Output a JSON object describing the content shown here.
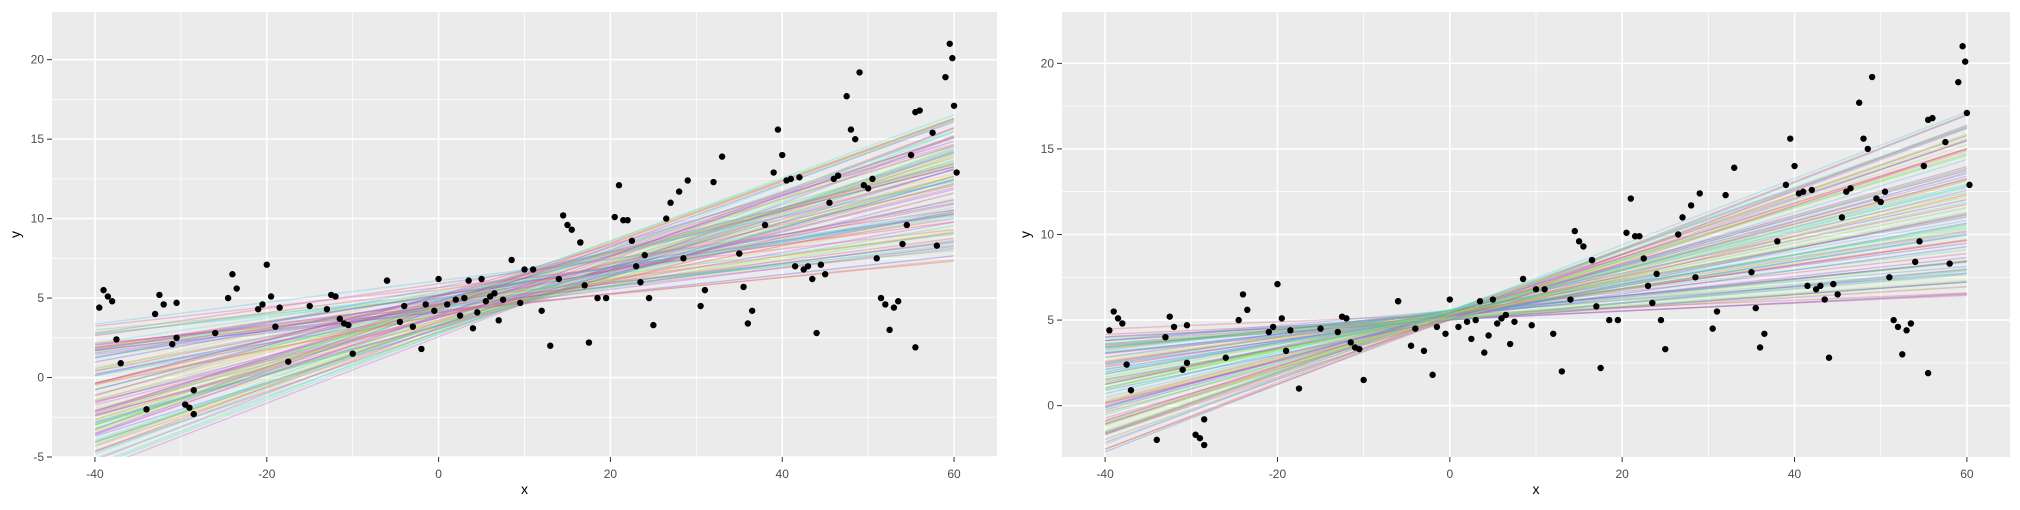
{
  "colors": {
    "panel_bg": "#EBEBEB",
    "grid": "#FFFFFF",
    "point": "#000000",
    "text": "#4D4D4D",
    "title": "#000000"
  },
  "chart_data": [
    {
      "type": "scatter",
      "xlabel": "x",
      "ylabel": "y",
      "xlim": [
        -45,
        65
      ],
      "ylim": [
        -5,
        23
      ],
      "x_ticks": [
        -40,
        -20,
        0,
        20,
        40,
        60
      ],
      "y_ticks": [
        -5,
        0,
        5,
        10,
        15,
        20
      ],
      "grid": true,
      "overlay": {
        "n_lines": 100,
        "line_opacity": 0.35,
        "pivot_x": 10,
        "pivot_y": [
          4.6,
          6.8
        ],
        "slope": [
          0.05,
          0.21
        ]
      },
      "points": [
        [
          -39.5,
          4.4
        ],
        [
          -39,
          5.5
        ],
        [
          -38.5,
          5.1
        ],
        [
          -38,
          4.8
        ],
        [
          -37.5,
          2.4
        ],
        [
          -37,
          0.9
        ],
        [
          -34,
          -2.0
        ],
        [
          -33,
          4.0
        ],
        [
          -32.5,
          5.2
        ],
        [
          -32,
          4.6
        ],
        [
          -31,
          2.1
        ],
        [
          -30.5,
          2.5
        ],
        [
          -30.5,
          4.7
        ],
        [
          -29.5,
          -1.7
        ],
        [
          -29,
          -1.9
        ],
        [
          -28.5,
          -2.3
        ],
        [
          -28.5,
          -0.8
        ],
        [
          -26,
          2.8
        ],
        [
          -24.5,
          5.0
        ],
        [
          -24,
          6.5
        ],
        [
          -23.5,
          5.6
        ],
        [
          -21,
          4.3
        ],
        [
          -20.5,
          4.6
        ],
        [
          -20,
          7.1
        ],
        [
          -19.5,
          5.1
        ],
        [
          -19,
          3.2
        ],
        [
          -18.5,
          4.4
        ],
        [
          -17.5,
          1.0
        ],
        [
          -15,
          4.5
        ],
        [
          -13,
          4.3
        ],
        [
          -12.5,
          5.2
        ],
        [
          -12,
          5.1
        ],
        [
          -11.5,
          3.7
        ],
        [
          -11,
          3.4
        ],
        [
          -10.5,
          3.3
        ],
        [
          -10,
          1.5
        ],
        [
          -6,
          6.1
        ],
        [
          -4.5,
          3.5
        ],
        [
          -4,
          4.5
        ],
        [
          -3,
          3.2
        ],
        [
          -2,
          1.8
        ],
        [
          -1.5,
          4.6
        ],
        [
          -0.5,
          4.2
        ],
        [
          0,
          6.2
        ],
        [
          1,
          4.6
        ],
        [
          2,
          4.9
        ],
        [
          2.5,
          3.9
        ],
        [
          3,
          5.0
        ],
        [
          3.5,
          6.1
        ],
        [
          4,
          3.1
        ],
        [
          4.5,
          4.1
        ],
        [
          5,
          6.2
        ],
        [
          5.5,
          4.8
        ],
        [
          6,
          5.1
        ],
        [
          6.5,
          5.3
        ],
        [
          7,
          3.6
        ],
        [
          7.5,
          4.9
        ],
        [
          8.5,
          7.4
        ],
        [
          9.5,
          4.7
        ],
        [
          10,
          6.8
        ],
        [
          11,
          6.8
        ],
        [
          12,
          4.2
        ],
        [
          13,
          2.0
        ],
        [
          14,
          6.2
        ],
        [
          14.5,
          10.2
        ],
        [
          15,
          9.6
        ],
        [
          15.5,
          9.3
        ],
        [
          16.5,
          8.5
        ],
        [
          17,
          5.8
        ],
        [
          17.5,
          2.2
        ],
        [
          18.5,
          5.0
        ],
        [
          19.5,
          5.0
        ],
        [
          20.5,
          10.1
        ],
        [
          21,
          12.1
        ],
        [
          21.5,
          9.9
        ],
        [
          22,
          9.9
        ],
        [
          22.5,
          8.6
        ],
        [
          23,
          7.0
        ],
        [
          23.5,
          6.0
        ],
        [
          24,
          7.7
        ],
        [
          24.5,
          5.0
        ],
        [
          25,
          3.3
        ],
        [
          26.5,
          10.0
        ],
        [
          27,
          11.0
        ],
        [
          28,
          11.7
        ],
        [
          28.5,
          7.5
        ],
        [
          29,
          12.4
        ],
        [
          30.5,
          4.5
        ],
        [
          31,
          5.5
        ],
        [
          32,
          12.3
        ],
        [
          33,
          13.9
        ],
        [
          35,
          7.8
        ],
        [
          35.5,
          5.7
        ],
        [
          36,
          3.4
        ],
        [
          36.5,
          4.2
        ],
        [
          38,
          9.6
        ],
        [
          39,
          12.9
        ],
        [
          39.5,
          15.6
        ],
        [
          40,
          14.0
        ],
        [
          40.5,
          12.4
        ],
        [
          41,
          12.5
        ],
        [
          41.5,
          7.0
        ],
        [
          42,
          12.6
        ],
        [
          42.5,
          6.8
        ],
        [
          43,
          7.0
        ],
        [
          43.5,
          6.2
        ],
        [
          44,
          2.8
        ],
        [
          44.5,
          7.1
        ],
        [
          45,
          6.5
        ],
        [
          45.5,
          11.0
        ],
        [
          46,
          12.5
        ],
        [
          46.5,
          12.7
        ],
        [
          47.5,
          17.7
        ],
        [
          48,
          15.6
        ],
        [
          48.5,
          15.0
        ],
        [
          49,
          19.2
        ],
        [
          49.5,
          12.1
        ],
        [
          50,
          11.9
        ],
        [
          50.5,
          12.5
        ],
        [
          51,
          7.5
        ],
        [
          51.5,
          5.0
        ],
        [
          52,
          4.6
        ],
        [
          52.5,
          3.0
        ],
        [
          53,
          4.4
        ],
        [
          53.5,
          4.8
        ],
        [
          54,
          8.4
        ],
        [
          54.5,
          9.6
        ],
        [
          55,
          14.0
        ],
        [
          55.5,
          16.7
        ],
        [
          56,
          16.8
        ],
        [
          57.5,
          15.4
        ],
        [
          58,
          8.3
        ],
        [
          59,
          18.9
        ],
        [
          59.5,
          21.0
        ],
        [
          59.8,
          20.1
        ],
        [
          60,
          17.1
        ],
        [
          60.3,
          12.9
        ],
        [
          55.5,
          1.9
        ],
        [
          16.5,
          8.5
        ],
        [
          -6,
          6.1
        ]
      ]
    },
    {
      "type": "scatter",
      "xlabel": "x",
      "ylabel": "y",
      "xlim": [
        -45,
        65
      ],
      "ylim": [
        -3,
        23
      ],
      "x_ticks": [
        -40,
        -20,
        0,
        20,
        40,
        60
      ],
      "y_ticks": [
        0,
        5,
        10,
        15,
        20
      ],
      "grid": true,
      "overlay": {
        "n_lines": 100,
        "line_opacity": 0.35,
        "pivot_x": 0,
        "pivot_y": [
          5.0,
          5.6
        ],
        "slope": [
          0.02,
          0.2
        ]
      },
      "points": [
        [
          -39.5,
          4.4
        ],
        [
          -39,
          5.5
        ],
        [
          -38.5,
          5.1
        ],
        [
          -38,
          4.8
        ],
        [
          -37.5,
          2.4
        ],
        [
          -37,
          0.9
        ],
        [
          -34,
          -2.0
        ],
        [
          -33,
          4.0
        ],
        [
          -32.5,
          5.2
        ],
        [
          -32,
          4.6
        ],
        [
          -31,
          2.1
        ],
        [
          -30.5,
          2.5
        ],
        [
          -30.5,
          4.7
        ],
        [
          -29.5,
          -1.7
        ],
        [
          -29,
          -1.9
        ],
        [
          -28.5,
          -2.3
        ],
        [
          -28.5,
          -0.8
        ],
        [
          -26,
          2.8
        ],
        [
          -24.5,
          5.0
        ],
        [
          -24,
          6.5
        ],
        [
          -23.5,
          5.6
        ],
        [
          -21,
          4.3
        ],
        [
          -20.5,
          4.6
        ],
        [
          -20,
          7.1
        ],
        [
          -19.5,
          5.1
        ],
        [
          -19,
          3.2
        ],
        [
          -18.5,
          4.4
        ],
        [
          -17.5,
          1.0
        ],
        [
          -15,
          4.5
        ],
        [
          -13,
          4.3
        ],
        [
          -12.5,
          5.2
        ],
        [
          -12,
          5.1
        ],
        [
          -11.5,
          3.7
        ],
        [
          -11,
          3.4
        ],
        [
          -10.5,
          3.3
        ],
        [
          -10,
          1.5
        ],
        [
          -6,
          6.1
        ],
        [
          -4.5,
          3.5
        ],
        [
          -4,
          4.5
        ],
        [
          -3,
          3.2
        ],
        [
          -2,
          1.8
        ],
        [
          -1.5,
          4.6
        ],
        [
          -0.5,
          4.2
        ],
        [
          0,
          6.2
        ],
        [
          1,
          4.6
        ],
        [
          2,
          4.9
        ],
        [
          2.5,
          3.9
        ],
        [
          3,
          5.0
        ],
        [
          3.5,
          6.1
        ],
        [
          4,
          3.1
        ],
        [
          4.5,
          4.1
        ],
        [
          5,
          6.2
        ],
        [
          5.5,
          4.8
        ],
        [
          6,
          5.1
        ],
        [
          6.5,
          5.3
        ],
        [
          7,
          3.6
        ],
        [
          7.5,
          4.9
        ],
        [
          8.5,
          7.4
        ],
        [
          9.5,
          4.7
        ],
        [
          10,
          6.8
        ],
        [
          11,
          6.8
        ],
        [
          12,
          4.2
        ],
        [
          13,
          2.0
        ],
        [
          14,
          6.2
        ],
        [
          14.5,
          10.2
        ],
        [
          15,
          9.6
        ],
        [
          15.5,
          9.3
        ],
        [
          16.5,
          8.5
        ],
        [
          17,
          5.8
        ],
        [
          17.5,
          2.2
        ],
        [
          18.5,
          5.0
        ],
        [
          19.5,
          5.0
        ],
        [
          20.5,
          10.1
        ],
        [
          21,
          12.1
        ],
        [
          21.5,
          9.9
        ],
        [
          22,
          9.9
        ],
        [
          22.5,
          8.6
        ],
        [
          23,
          7.0
        ],
        [
          23.5,
          6.0
        ],
        [
          24,
          7.7
        ],
        [
          24.5,
          5.0
        ],
        [
          25,
          3.3
        ],
        [
          26.5,
          10.0
        ],
        [
          27,
          11.0
        ],
        [
          28,
          11.7
        ],
        [
          28.5,
          7.5
        ],
        [
          29,
          12.4
        ],
        [
          30.5,
          4.5
        ],
        [
          31,
          5.5
        ],
        [
          32,
          12.3
        ],
        [
          33,
          13.9
        ],
        [
          35,
          7.8
        ],
        [
          35.5,
          5.7
        ],
        [
          36,
          3.4
        ],
        [
          36.5,
          4.2
        ],
        [
          38,
          9.6
        ],
        [
          39,
          12.9
        ],
        [
          39.5,
          15.6
        ],
        [
          40,
          14.0
        ],
        [
          40.5,
          12.4
        ],
        [
          41,
          12.5
        ],
        [
          41.5,
          7.0
        ],
        [
          42,
          12.6
        ],
        [
          42.5,
          6.8
        ],
        [
          43,
          7.0
        ],
        [
          43.5,
          6.2
        ],
        [
          44,
          2.8
        ],
        [
          44.5,
          7.1
        ],
        [
          45,
          6.5
        ],
        [
          45.5,
          11.0
        ],
        [
          46,
          12.5
        ],
        [
          46.5,
          12.7
        ],
        [
          47.5,
          17.7
        ],
        [
          48,
          15.6
        ],
        [
          48.5,
          15.0
        ],
        [
          49,
          19.2
        ],
        [
          49.5,
          12.1
        ],
        [
          50,
          11.9
        ],
        [
          50.5,
          12.5
        ],
        [
          51,
          7.5
        ],
        [
          51.5,
          5.0
        ],
        [
          52,
          4.6
        ],
        [
          52.5,
          3.0
        ],
        [
          53,
          4.4
        ],
        [
          53.5,
          4.8
        ],
        [
          54,
          8.4
        ],
        [
          54.5,
          9.6
        ],
        [
          55,
          14.0
        ],
        [
          55.5,
          16.7
        ],
        [
          56,
          16.8
        ],
        [
          57.5,
          15.4
        ],
        [
          58,
          8.3
        ],
        [
          59,
          18.9
        ],
        [
          59.5,
          21.0
        ],
        [
          59.8,
          20.1
        ],
        [
          60,
          17.1
        ],
        [
          60.3,
          12.9
        ],
        [
          55.5,
          1.9
        ],
        [
          16.5,
          8.5
        ],
        [
          -6,
          6.1
        ]
      ]
    }
  ]
}
